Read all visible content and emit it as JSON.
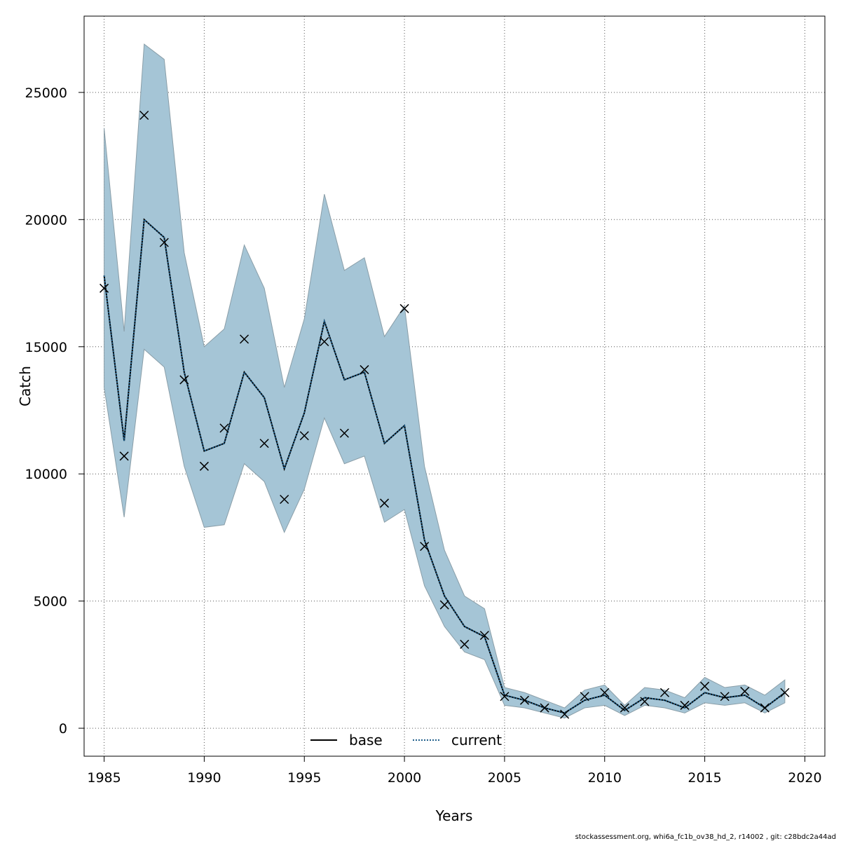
{
  "chart_data": {
    "type": "line",
    "xlabel": "Years",
    "ylabel": "Catch",
    "xlim": [
      1984,
      2021
    ],
    "ylim": [
      -1100,
      28000
    ],
    "xticks": [
      1985,
      1990,
      1995,
      2000,
      2005,
      2010,
      2015,
      2020
    ],
    "yticks": [
      0,
      5000,
      10000,
      15000,
      20000,
      25000
    ],
    "grid": true,
    "legend_position": "bottom-center",
    "colors": {
      "band": "#a5c5d6",
      "band_edge": "#8a9ea8",
      "line": "#000000",
      "current_line": "#1f5f8b",
      "grid": "#555555"
    },
    "x": [
      1985,
      1986,
      1987,
      1988,
      1989,
      1990,
      1991,
      1992,
      1993,
      1994,
      1995,
      1996,
      1997,
      1998,
      1999,
      2000,
      2001,
      2002,
      2003,
      2004,
      2005,
      2006,
      2007,
      2008,
      2009,
      2010,
      2011,
      2012,
      2013,
      2014,
      2015,
      2016,
      2017,
      2018,
      2019
    ],
    "series": [
      {
        "name": "base",
        "style": "solid",
        "values": [
          17800,
          11300,
          20000,
          19300,
          14000,
          10900,
          11200,
          14000,
          13000,
          10200,
          12400,
          16000,
          13700,
          14000,
          11200,
          11900,
          7400,
          5200,
          4000,
          3600,
          1300,
          1100,
          800,
          600,
          1100,
          1300,
          700,
          1200,
          1100,
          800,
          1400,
          1200,
          1300,
          800,
          1400
        ]
      },
      {
        "name": "current",
        "style": "dotted",
        "values": [
          17800,
          11300,
          20000,
          19300,
          14000,
          10900,
          11200,
          14000,
          13000,
          10200,
          12400,
          16000,
          13700,
          14000,
          11200,
          11900,
          7400,
          5200,
          4000,
          3600,
          1300,
          1100,
          800,
          600,
          1100,
          1300,
          700,
          1200,
          1100,
          800,
          1400,
          1200,
          1300,
          800,
          1400
        ]
      }
    ],
    "band": {
      "lower": [
        13400,
        8300,
        14900,
        14200,
        10300,
        7900,
        8000,
        10400,
        9700,
        7700,
        9400,
        12200,
        10400,
        10700,
        8100,
        8600,
        5600,
        4000,
        3000,
        2700,
        900,
        800,
        600,
        400,
        800,
        900,
        500,
        900,
        800,
        600,
        1000,
        900,
        1000,
        600,
        1000
      ],
      "upper": [
        23600,
        15600,
        26900,
        26300,
        18700,
        15000,
        15700,
        19000,
        17300,
        13400,
        16100,
        21000,
        18000,
        18500,
        15400,
        16600,
        10300,
        7000,
        5200,
        4700,
        1600,
        1400,
        1100,
        800,
        1500,
        1700,
        900,
        1600,
        1500,
        1200,
        2000,
        1600,
        1700,
        1300,
        1900
      ]
    },
    "observed": [
      17300,
      10700,
      24100,
      19100,
      13700,
      10300,
      11800,
      15300,
      11200,
      9000,
      11500,
      15200,
      11600,
      14100,
      8850,
      16500,
      7150,
      4850,
      3300,
      3650,
      1250,
      1100,
      800,
      550,
      1250,
      1400,
      800,
      1050,
      1400,
      900,
      1650,
      1250,
      1450,
      800,
      1400
    ]
  },
  "footer": "stockassessment.org, whi6a_fc1b_ov38_hd_2, r14002 , git: c28bdc2a44ad"
}
